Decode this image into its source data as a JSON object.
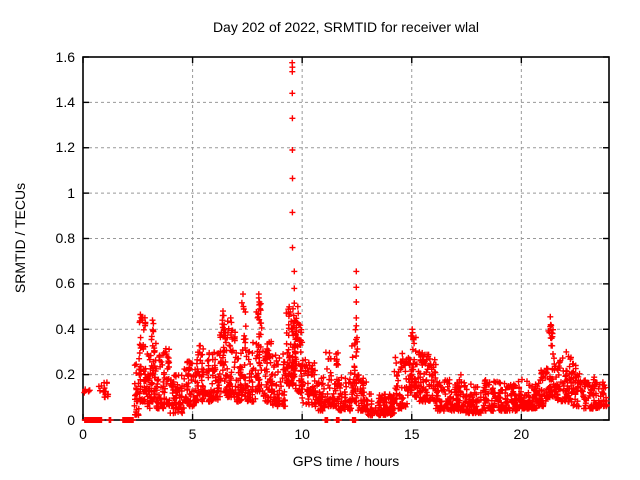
{
  "chart_data": {
    "type": "scatter",
    "title": "Day 202 of 2022, SRMTID for receiver wlal",
    "xlabel": "GPS time / hours",
    "ylabel": "SRMTID / TECUs",
    "xlim": [
      0,
      24
    ],
    "ylim": [
      0,
      1.6
    ],
    "xticks": {
      "values": [
        0,
        5,
        10,
        15,
        20
      ],
      "labels": [
        "0",
        "5",
        "10",
        "15",
        "20"
      ]
    },
    "yticks": {
      "values": [
        0,
        0.2,
        0.4,
        0.6,
        0.8,
        1.0,
        1.2,
        1.4,
        1.6
      ],
      "labels": [
        "0",
        "0.2",
        "0.4",
        "0.6",
        "0.8",
        "1",
        "1.2",
        "1.4",
        "1.6"
      ]
    },
    "grid": true,
    "legend": "none",
    "marker": "plus",
    "series_color": "#ff0000",
    "points_spec": {
      "seed": 1202,
      "bias_exponent": 1.6,
      "zero_step": 0.015,
      "bands": [
        [
          0.05,
          0.35,
          0.1,
          0.145,
          4
        ],
        [
          0.68,
          1.15,
          0.1,
          0.17,
          16
        ],
        [
          2.35,
          2.55,
          0.02,
          0.26,
          25
        ],
        [
          2.55,
          2.85,
          0.08,
          0.46,
          50
        ],
        [
          2.85,
          3.1,
          0.05,
          0.3,
          30
        ],
        [
          3.1,
          3.35,
          0.08,
          0.43,
          40
        ],
        [
          3.35,
          3.7,
          0.05,
          0.3,
          40
        ],
        [
          3.7,
          3.95,
          0.06,
          0.32,
          30
        ],
        [
          3.95,
          4.6,
          0.03,
          0.2,
          60
        ],
        [
          4.6,
          5.2,
          0.06,
          0.26,
          60
        ],
        [
          5.2,
          5.6,
          0.08,
          0.33,
          45
        ],
        [
          5.6,
          6.25,
          0.08,
          0.3,
          65
        ],
        [
          6.25,
          6.55,
          0.12,
          0.47,
          45
        ],
        [
          6.55,
          6.95,
          0.1,
          0.44,
          50
        ],
        [
          6.95,
          7.25,
          0.08,
          0.3,
          35
        ],
        [
          7.25,
          7.45,
          0.1,
          0.53,
          30
        ],
        [
          7.45,
          7.9,
          0.08,
          0.35,
          45
        ],
        [
          7.9,
          8.2,
          0.12,
          0.54,
          45
        ],
        [
          8.2,
          8.6,
          0.08,
          0.35,
          45
        ],
        [
          8.6,
          9.25,
          0.06,
          0.3,
          65
        ],
        [
          9.25,
          9.5,
          0.15,
          0.5,
          40
        ],
        [
          9.5,
          9.7,
          0.15,
          0.45,
          40
        ],
        [
          9.7,
          10.0,
          0.12,
          0.46,
          50
        ],
        [
          10.0,
          10.6,
          0.06,
          0.27,
          55
        ],
        [
          10.6,
          11.05,
          0.04,
          0.2,
          45
        ],
        [
          11.05,
          11.65,
          0.06,
          0.3,
          55
        ],
        [
          11.65,
          12.25,
          0.04,
          0.22,
          55
        ],
        [
          12.25,
          12.55,
          0.08,
          0.4,
          35
        ],
        [
          12.55,
          12.95,
          0.04,
          0.2,
          45
        ],
        [
          12.95,
          14.2,
          0.02,
          0.12,
          110
        ],
        [
          14.2,
          14.9,
          0.05,
          0.3,
          65
        ],
        [
          14.9,
          15.25,
          0.1,
          0.38,
          45
        ],
        [
          15.25,
          15.6,
          0.08,
          0.3,
          40
        ],
        [
          15.6,
          16.1,
          0.08,
          0.3,
          50
        ],
        [
          16.1,
          16.8,
          0.04,
          0.18,
          65
        ],
        [
          16.8,
          17.4,
          0.04,
          0.2,
          60
        ],
        [
          17.4,
          18.2,
          0.03,
          0.16,
          75
        ],
        [
          18.2,
          19.0,
          0.04,
          0.18,
          75
        ],
        [
          19.0,
          19.8,
          0.04,
          0.17,
          75
        ],
        [
          19.8,
          20.9,
          0.05,
          0.18,
          100
        ],
        [
          20.9,
          21.2,
          0.06,
          0.25,
          30
        ],
        [
          21.2,
          21.6,
          0.1,
          0.42,
          50
        ],
        [
          21.6,
          22.3,
          0.08,
          0.3,
          65
        ],
        [
          22.3,
          22.8,
          0.06,
          0.25,
          45
        ],
        [
          22.8,
          23.55,
          0.05,
          0.2,
          65
        ],
        [
          23.55,
          23.9,
          0.06,
          0.17,
          30
        ]
      ],
      "spikes": [
        [
          0.1,
          0.135
        ],
        [
          0.28,
          0.13
        ],
        [
          2.62,
          0.465
        ],
        [
          2.66,
          0.45
        ],
        [
          2.71,
          0.44
        ],
        [
          2.58,
          0.43
        ],
        [
          3.17,
          0.44
        ],
        [
          3.21,
          0.425
        ],
        [
          6.39,
          0.48
        ],
        [
          6.42,
          0.46
        ],
        [
          6.36,
          0.44
        ],
        [
          6.74,
          0.45
        ],
        [
          6.77,
          0.43
        ],
        [
          7.3,
          0.555
        ],
        [
          7.32,
          0.5
        ],
        [
          8.02,
          0.555
        ],
        [
          8.05,
          0.52
        ],
        [
          8.08,
          0.49
        ],
        [
          8.0,
          0.47
        ],
        [
          9.545,
          1.575
        ],
        [
          9.555,
          1.555
        ],
        [
          9.55,
          1.535
        ],
        [
          9.55,
          1.44
        ],
        [
          9.555,
          1.33
        ],
        [
          9.555,
          1.19
        ],
        [
          9.56,
          1.065
        ],
        [
          9.555,
          0.915
        ],
        [
          9.56,
          0.76
        ],
        [
          9.64,
          0.655
        ],
        [
          9.64,
          0.58
        ],
        [
          9.64,
          0.515
        ],
        [
          9.62,
          0.46
        ],
        [
          9.65,
          0.44
        ],
        [
          9.63,
          0.415
        ],
        [
          9.58,
          0.49
        ],
        [
          9.8,
          0.5
        ],
        [
          9.82,
          0.47
        ],
        [
          12.47,
          0.655
        ],
        [
          12.47,
          0.585
        ],
        [
          12.47,
          0.52
        ],
        [
          12.47,
          0.45
        ],
        [
          12.47,
          0.415
        ],
        [
          12.46,
          0.355
        ],
        [
          12.48,
          0.3
        ],
        [
          15.02,
          0.4
        ],
        [
          15.04,
          0.385
        ],
        [
          15.0,
          0.37
        ],
        [
          15.06,
          0.355
        ],
        [
          21.32,
          0.455
        ],
        [
          21.34,
          0.42
        ],
        [
          21.28,
          0.385
        ],
        [
          21.38,
          0.36
        ],
        [
          22.05,
          0.3
        ],
        [
          22.15,
          0.28
        ]
      ],
      "zero_runs": [
        [
          0.08,
          0.85
        ],
        [
          1.2,
          1.27
        ],
        [
          1.82,
          2.3
        ],
        [
          11.05,
          11.16
        ],
        [
          11.57,
          11.69
        ],
        [
          12.3,
          12.44
        ]
      ]
    }
  },
  "colors": {
    "marker": "#ff0000",
    "grid": "#999999",
    "axis": "#000000",
    "text": "#000000",
    "background": "#ffffff"
  }
}
